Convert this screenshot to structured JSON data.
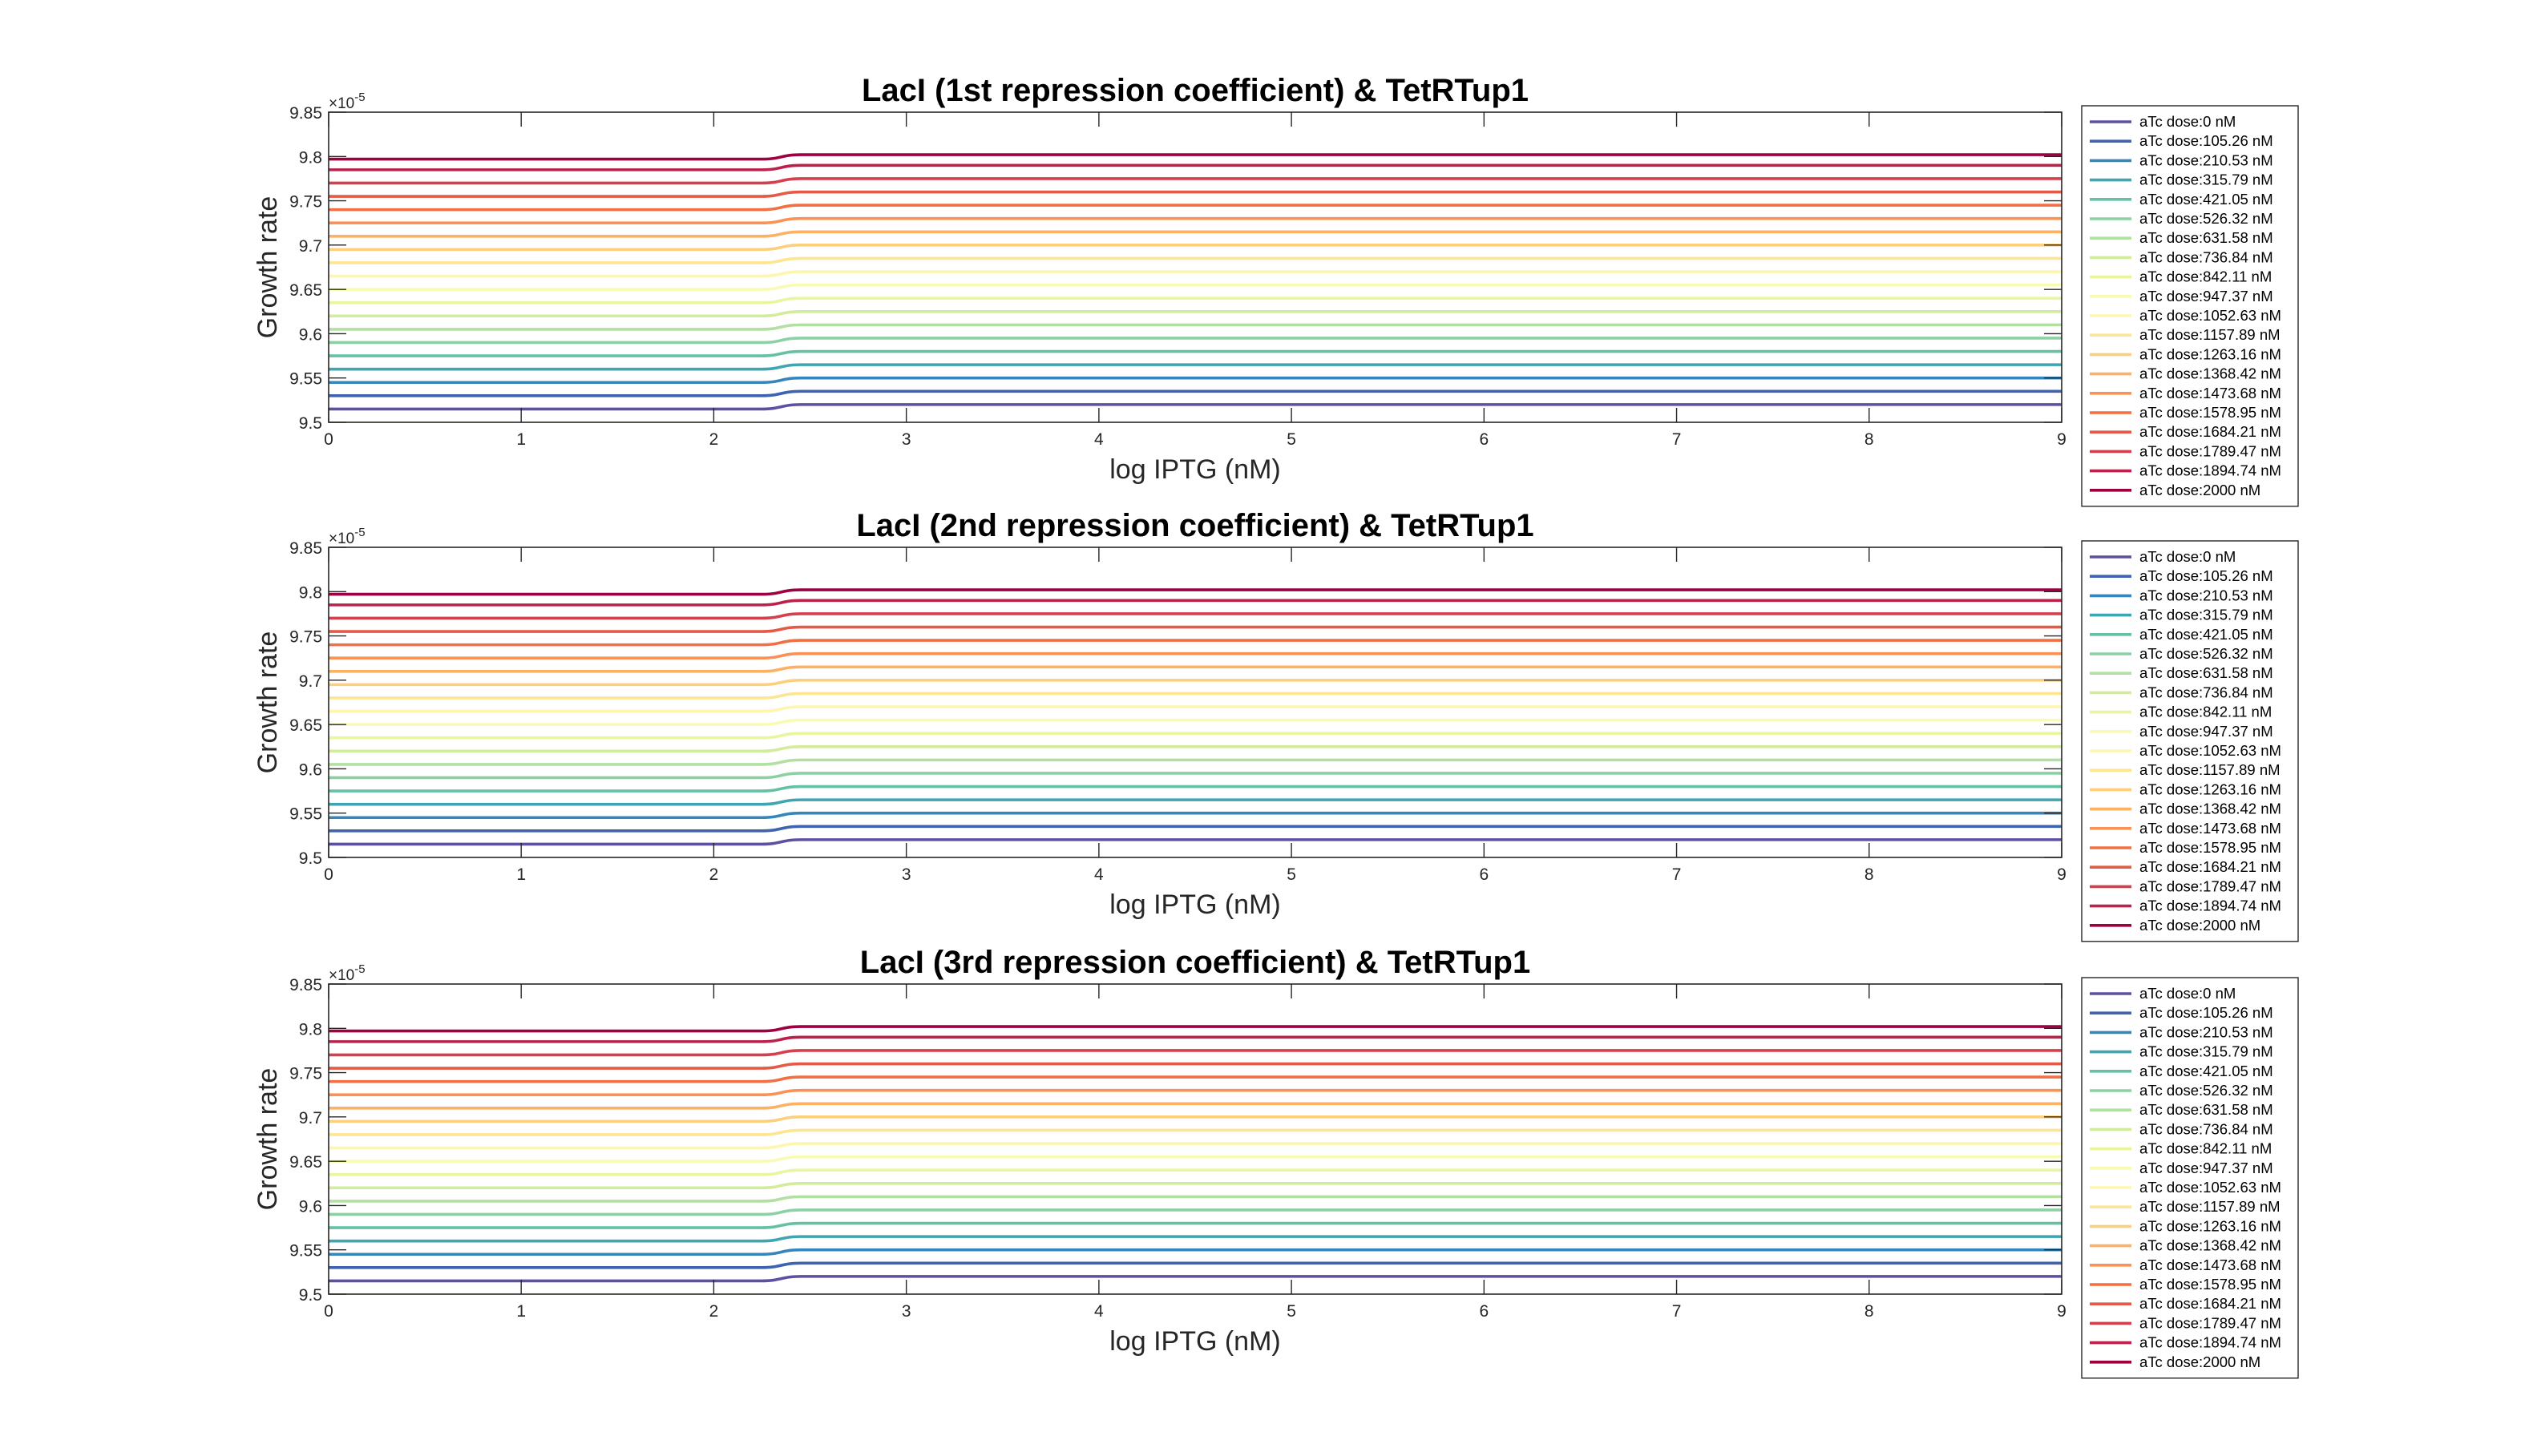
{
  "chart_data": [
    {
      "type": "line",
      "title": "LacI (1st repression coefficient) & TetRTup1",
      "xlabel": "log IPTG (nM)",
      "ylabel": "Growth rate",
      "y_exponent_label": "×10",
      "y_exponent_power": "-5",
      "xlim": [
        0,
        9
      ],
      "ylim": [
        9.5,
        9.85
      ],
      "x_ticks": [
        "0",
        "1",
        "2",
        "3",
        "4",
        "5",
        "6",
        "7",
        "8",
        "9"
      ],
      "y_ticks": [
        "9.5",
        "9.55",
        "9.6",
        "9.65",
        "9.7",
        "9.75",
        "9.8",
        "9.85"
      ],
      "grid": false,
      "legend_position": "outside-right",
      "transition_x": [
        2.25,
        2.45
      ],
      "series": [
        {
          "name": "aTc dose:0 nM",
          "color": "#5E4FA2",
          "values_low": 9.515,
          "values_high": 9.52
        },
        {
          "name": "aTc dose:105.26 nM",
          "color": "#4063B1",
          "values_low": 9.53,
          "values_high": 9.535
        },
        {
          "name": "aTc dose:210.53 nM",
          "color": "#3486BB",
          "values_low": 9.545,
          "values_high": 9.55
        },
        {
          "name": "aTc dose:315.79 nM",
          "color": "#3FA5B0",
          "values_low": 9.56,
          "values_high": 9.565
        },
        {
          "name": "aTc dose:421.05 nM",
          "color": "#65C0A6",
          "values_low": 9.575,
          "values_high": 9.58
        },
        {
          "name": "aTc dose:526.32 nM",
          "color": "#8CD1A4",
          "values_low": 9.59,
          "values_high": 9.595
        },
        {
          "name": "aTc dose:631.58 nM",
          "color": "#B2E0A2",
          "values_low": 9.605,
          "values_high": 9.61
        },
        {
          "name": "aTc dose:736.84 nM",
          "color": "#D2EC9C",
          "values_low": 9.62,
          "values_high": 9.625
        },
        {
          "name": "aTc dose:842.11 nM",
          "color": "#EAF59E",
          "values_low": 9.635,
          "values_high": 9.64
        },
        {
          "name": "aTc dose:947.37 nM",
          "color": "#F8FBB2",
          "values_low": 9.65,
          "values_high": 9.655
        },
        {
          "name": "aTc dose:1052.63 nM",
          "color": "#FEF6AE",
          "values_low": 9.665,
          "values_high": 9.67
        },
        {
          "name": "aTc dose:1157.89 nM",
          "color": "#FEE592",
          "values_low": 9.68,
          "values_high": 9.685
        },
        {
          "name": "aTc dose:1263.16 nM",
          "color": "#FDCE7C",
          "values_low": 9.695,
          "values_high": 9.7
        },
        {
          "name": "aTc dose:1368.42 nM",
          "color": "#FCB165",
          "values_low": 9.71,
          "values_high": 9.715
        },
        {
          "name": "aTc dose:1473.68 nM",
          "color": "#F99254",
          "values_low": 9.725,
          "values_high": 9.73
        },
        {
          "name": "aTc dose:1578.95 nM",
          "color": "#F26F44",
          "values_low": 9.74,
          "values_high": 9.745
        },
        {
          "name": "aTc dose:1684.21 nM",
          "color": "#E55A47",
          "values_low": 9.755,
          "values_high": 9.76
        },
        {
          "name": "aTc dose:1789.47 nM",
          "color": "#D5404E",
          "values_low": 9.77,
          "values_high": 9.775
        },
        {
          "name": "aTc dose:1894.74 nM",
          "color": "#BC2149",
          "values_low": 9.785,
          "values_high": 9.79
        },
        {
          "name": "aTc dose:2000 nM",
          "color": "#9E0142",
          "values_low": 9.797,
          "values_high": 9.802
        }
      ]
    },
    {
      "type": "line",
      "title": "LacI (2nd repression coefficient) & TetRTup1",
      "xlabel": "log IPTG (nM)",
      "ylabel": "Growth rate",
      "y_exponent_label": "×10",
      "y_exponent_power": "-5",
      "xlim": [
        0,
        9
      ],
      "ylim": [
        9.5,
        9.85
      ],
      "x_ticks": [
        "0",
        "1",
        "2",
        "3",
        "4",
        "5",
        "6",
        "7",
        "8",
        "9"
      ],
      "y_ticks": [
        "9.5",
        "9.55",
        "9.6",
        "9.65",
        "9.7",
        "9.75",
        "9.8",
        "9.85"
      ],
      "grid": false,
      "legend_position": "outside-right",
      "transition_x": [
        2.25,
        2.45
      ],
      "series": [
        {
          "name": "aTc dose:0 nM",
          "color": "#5E4FA2",
          "values_low": 9.515,
          "values_high": 9.52
        },
        {
          "name": "aTc dose:105.26 nM",
          "color": "#4063B1",
          "values_low": 9.53,
          "values_high": 9.535
        },
        {
          "name": "aTc dose:210.53 nM",
          "color": "#3486BB",
          "values_low": 9.545,
          "values_high": 9.55
        },
        {
          "name": "aTc dose:315.79 nM",
          "color": "#3FA5B0",
          "values_low": 9.56,
          "values_high": 9.565
        },
        {
          "name": "aTc dose:421.05 nM",
          "color": "#65C0A6",
          "values_low": 9.575,
          "values_high": 9.58
        },
        {
          "name": "aTc dose:526.32 nM",
          "color": "#8CD1A4",
          "values_low": 9.59,
          "values_high": 9.595
        },
        {
          "name": "aTc dose:631.58 nM",
          "color": "#B2E0A2",
          "values_low": 9.605,
          "values_high": 9.61
        },
        {
          "name": "aTc dose:736.84 nM",
          "color": "#D2EC9C",
          "values_low": 9.62,
          "values_high": 9.625
        },
        {
          "name": "aTc dose:842.11 nM",
          "color": "#EAF59E",
          "values_low": 9.635,
          "values_high": 9.64
        },
        {
          "name": "aTc dose:947.37 nM",
          "color": "#F8FBB2",
          "values_low": 9.65,
          "values_high": 9.655
        },
        {
          "name": "aTc dose:1052.63 nM",
          "color": "#FEF6AE",
          "values_low": 9.665,
          "values_high": 9.67
        },
        {
          "name": "aTc dose:1157.89 nM",
          "color": "#FEE592",
          "values_low": 9.68,
          "values_high": 9.685
        },
        {
          "name": "aTc dose:1263.16 nM",
          "color": "#FDCE7C",
          "values_low": 9.695,
          "values_high": 9.7
        },
        {
          "name": "aTc dose:1368.42 nM",
          "color": "#FCB165",
          "values_low": 9.71,
          "values_high": 9.715
        },
        {
          "name": "aTc dose:1473.68 nM",
          "color": "#F99254",
          "values_low": 9.725,
          "values_high": 9.73
        },
        {
          "name": "aTc dose:1578.95 nM",
          "color": "#F26F44",
          "values_low": 9.74,
          "values_high": 9.745
        },
        {
          "name": "aTc dose:1684.21 nM",
          "color": "#E55A47",
          "values_low": 9.755,
          "values_high": 9.76
        },
        {
          "name": "aTc dose:1789.47 nM",
          "color": "#D5404E",
          "values_low": 9.77,
          "values_high": 9.775
        },
        {
          "name": "aTc dose:1894.74 nM",
          "color": "#BC2149",
          "values_low": 9.785,
          "values_high": 9.79
        },
        {
          "name": "aTc dose:2000 nM",
          "color": "#9E0142",
          "values_low": 9.797,
          "values_high": 9.802
        }
      ]
    },
    {
      "type": "line",
      "title": "LacI (3rd repression coefficient) & TetRTup1",
      "xlabel": "log IPTG (nM)",
      "ylabel": "Growth rate",
      "y_exponent_label": "×10",
      "y_exponent_power": "-5",
      "xlim": [
        0,
        9
      ],
      "ylim": [
        9.5,
        9.85
      ],
      "x_ticks": [
        "0",
        "1",
        "2",
        "3",
        "4",
        "5",
        "6",
        "7",
        "8",
        "9"
      ],
      "y_ticks": [
        "9.5",
        "9.55",
        "9.6",
        "9.65",
        "9.7",
        "9.75",
        "9.8",
        "9.85"
      ],
      "grid": false,
      "legend_position": "outside-right",
      "transition_x": [
        2.25,
        2.45
      ],
      "series": [
        {
          "name": "aTc dose:0 nM",
          "color": "#5E4FA2",
          "values_low": 9.515,
          "values_high": 9.52
        },
        {
          "name": "aTc dose:105.26 nM",
          "color": "#4063B1",
          "values_low": 9.53,
          "values_high": 9.535
        },
        {
          "name": "aTc dose:210.53 nM",
          "color": "#3486BB",
          "values_low": 9.545,
          "values_high": 9.55
        },
        {
          "name": "aTc dose:315.79 nM",
          "color": "#3FA5B0",
          "values_low": 9.56,
          "values_high": 9.565
        },
        {
          "name": "aTc dose:421.05 nM",
          "color": "#65C0A6",
          "values_low": 9.575,
          "values_high": 9.58
        },
        {
          "name": "aTc dose:526.32 nM",
          "color": "#8CD1A4",
          "values_low": 9.59,
          "values_high": 9.595
        },
        {
          "name": "aTc dose:631.58 nM",
          "color": "#B2E0A2",
          "values_low": 9.605,
          "values_high": 9.61
        },
        {
          "name": "aTc dose:736.84 nM",
          "color": "#D2EC9C",
          "values_low": 9.62,
          "values_high": 9.625
        },
        {
          "name": "aTc dose:842.11 nM",
          "color": "#EAF59E",
          "values_low": 9.635,
          "values_high": 9.64
        },
        {
          "name": "aTc dose:947.37 nM",
          "color": "#F8FBB2",
          "values_low": 9.65,
          "values_high": 9.655
        },
        {
          "name": "aTc dose:1052.63 nM",
          "color": "#FEF6AE",
          "values_low": 9.665,
          "values_high": 9.67
        },
        {
          "name": "aTc dose:1157.89 nM",
          "color": "#FEE592",
          "values_low": 9.68,
          "values_high": 9.685
        },
        {
          "name": "aTc dose:1263.16 nM",
          "color": "#FDCE7C",
          "values_low": 9.695,
          "values_high": 9.7
        },
        {
          "name": "aTc dose:1368.42 nM",
          "color": "#FCB165",
          "values_low": 9.71,
          "values_high": 9.715
        },
        {
          "name": "aTc dose:1473.68 nM",
          "color": "#F99254",
          "values_low": 9.725,
          "values_high": 9.73
        },
        {
          "name": "aTc dose:1578.95 nM",
          "color": "#F26F44",
          "values_low": 9.74,
          "values_high": 9.745
        },
        {
          "name": "aTc dose:1684.21 nM",
          "color": "#E55A47",
          "values_low": 9.755,
          "values_high": 9.76
        },
        {
          "name": "aTc dose:1789.47 nM",
          "color": "#D5404E",
          "values_low": 9.77,
          "values_high": 9.775
        },
        {
          "name": "aTc dose:1894.74 nM",
          "color": "#BC2149",
          "values_low": 9.785,
          "values_high": 9.79
        },
        {
          "name": "aTc dose:2000 nM",
          "color": "#9E0142",
          "values_low": 9.797,
          "values_high": 9.802
        }
      ]
    }
  ]
}
